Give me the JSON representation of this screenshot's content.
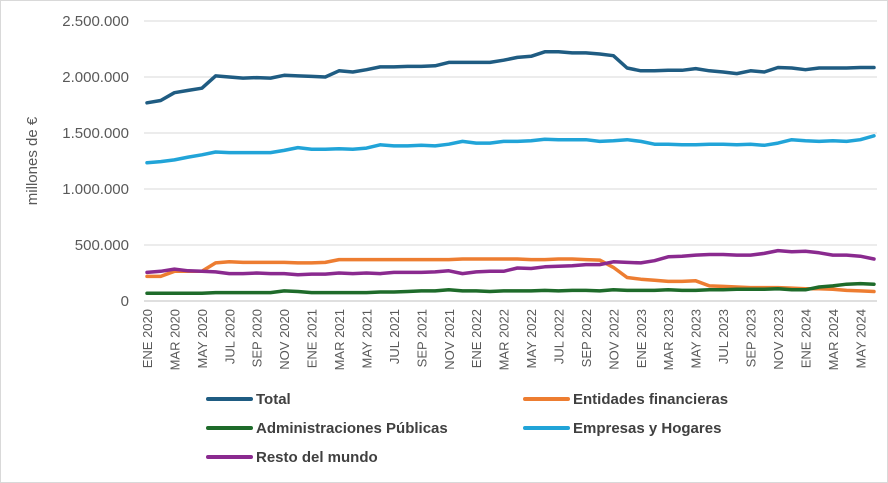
{
  "chart_data": {
    "type": "line",
    "ylabel": "millones de €",
    "ylim": [
      0,
      2500000
    ],
    "yticks": [
      0,
      500000,
      1000000,
      1500000,
      2000000,
      2500000
    ],
    "ytick_labels": [
      "0",
      "500.000",
      "1.000.000",
      "1.500.000",
      "2.000.000",
      "2.500.000"
    ],
    "grid": "horizontal",
    "legend_position": "bottom",
    "x": [
      "ENE 2020",
      "FEB 2020",
      "MAR 2020",
      "ABR 2020",
      "MAY 2020",
      "JUN 2020",
      "JUL 2020",
      "AGO 2020",
      "SEP 2020",
      "OCT 2020",
      "NOV 2020",
      "DIC 2020",
      "ENE 2021",
      "FEB 2021",
      "MAR 2021",
      "ABR 2021",
      "MAY 2021",
      "JUN 2021",
      "JUL 2021",
      "AGO 2021",
      "SEP 2021",
      "OCT 2021",
      "NOV 2021",
      "DIC 2021",
      "ENE 2022",
      "FEB 2022",
      "MAR 2022",
      "ABR 2022",
      "MAY 2022",
      "JUN 2022",
      "JUL 2022",
      "AGO 2022",
      "SEP 2022",
      "OCT 2022",
      "NOV 2022",
      "DIC 2022",
      "ENE 2023",
      "FEB 2023",
      "MAR 2023",
      "ABR 2023",
      "MAY 2023",
      "JUN 2023",
      "JUL 2023",
      "AGO 2023",
      "SEP 2023",
      "OCT 2023",
      "NOV 2023",
      "DIC 2023",
      "ENE 2024",
      "FEB 2024",
      "MAR 2024",
      "ABR 2024",
      "MAY 2024",
      "JUN 2024"
    ],
    "x_tick_labels": [
      "ENE 2020",
      "MAR 2020",
      "MAY 2020",
      "JUL 2020",
      "SEP 2020",
      "NOV 2020",
      "ENE 2021",
      "MAR 2021",
      "MAY 2021",
      "JUL 2021",
      "SEP 2021",
      "NOV 2021",
      "ENE 2022",
      "MAR 2022",
      "MAY 2022",
      "JUL 2022",
      "SEP 2022",
      "NOV 2022",
      "ENE 2023",
      "MAR 2023",
      "MAY 2023",
      "JUL 2023",
      "SEP 2023",
      "NOV 2023",
      "ENE 2024",
      "MAR 2024",
      "MAY 2024"
    ],
    "series": [
      {
        "name": "Total",
        "color": "#1f5c82",
        "values": [
          1770000,
          1790000,
          1860000,
          1880000,
          1900000,
          2010000,
          2000000,
          1990000,
          1995000,
          1990000,
          2015000,
          2010000,
          2005000,
          2000000,
          2055000,
          2045000,
          2065000,
          2090000,
          2090000,
          2095000,
          2095000,
          2100000,
          2130000,
          2130000,
          2130000,
          2130000,
          2150000,
          2175000,
          2185000,
          2225000,
          2225000,
          2215000,
          2215000,
          2205000,
          2190000,
          2080000,
          2055000,
          2055000,
          2060000,
          2060000,
          2075000,
          2055000,
          2045000,
          2030000,
          2055000,
          2045000,
          2085000,
          2080000,
          2065000,
          2080000,
          2080000,
          2080000,
          2085000,
          2085000
        ]
      },
      {
        "name": "Entidades financieras",
        "color": "#ed7d31",
        "values": [
          220000,
          220000,
          265000,
          265000,
          265000,
          340000,
          350000,
          345000,
          345000,
          345000,
          345000,
          340000,
          340000,
          345000,
          370000,
          370000,
          370000,
          370000,
          370000,
          370000,
          370000,
          370000,
          370000,
          375000,
          375000,
          375000,
          375000,
          375000,
          370000,
          370000,
          375000,
          375000,
          370000,
          365000,
          300000,
          210000,
          195000,
          185000,
          175000,
          175000,
          180000,
          135000,
          130000,
          125000,
          120000,
          120000,
          120000,
          115000,
          110000,
          110000,
          105000,
          95000,
          90000,
          85000
        ]
      },
      {
        "name": "Administraciones Públicas",
        "color": "#1e6b2a",
        "values": [
          70000,
          70000,
          70000,
          70000,
          70000,
          75000,
          75000,
          75000,
          75000,
          75000,
          90000,
          85000,
          75000,
          75000,
          75000,
          75000,
          75000,
          80000,
          80000,
          85000,
          90000,
          90000,
          100000,
          90000,
          90000,
          85000,
          90000,
          90000,
          90000,
          95000,
          90000,
          95000,
          95000,
          90000,
          100000,
          95000,
          95000,
          95000,
          100000,
          95000,
          95000,
          100000,
          100000,
          105000,
          105000,
          105000,
          110000,
          100000,
          100000,
          125000,
          135000,
          150000,
          155000,
          150000
        ]
      },
      {
        "name": "Empresas y Hogares",
        "color": "#21a4d8",
        "values": [
          1235000,
          1245000,
          1260000,
          1285000,
          1305000,
          1330000,
          1325000,
          1325000,
          1325000,
          1325000,
          1345000,
          1370000,
          1355000,
          1355000,
          1360000,
          1355000,
          1365000,
          1395000,
          1385000,
          1385000,
          1390000,
          1385000,
          1400000,
          1425000,
          1410000,
          1410000,
          1425000,
          1425000,
          1430000,
          1445000,
          1440000,
          1440000,
          1440000,
          1425000,
          1430000,
          1440000,
          1425000,
          1400000,
          1400000,
          1395000,
          1395000,
          1400000,
          1400000,
          1395000,
          1400000,
          1390000,
          1410000,
          1440000,
          1430000,
          1425000,
          1430000,
          1425000,
          1440000,
          1475000
        ]
      },
      {
        "name": "Resto del mundo",
        "color": "#8a2a8f",
        "values": [
          255000,
          265000,
          285000,
          270000,
          265000,
          260000,
          245000,
          245000,
          250000,
          245000,
          245000,
          235000,
          240000,
          240000,
          250000,
          245000,
          250000,
          245000,
          255000,
          255000,
          255000,
          260000,
          270000,
          245000,
          260000,
          265000,
          265000,
          295000,
          290000,
          305000,
          310000,
          315000,
          325000,
          325000,
          350000,
          345000,
          340000,
          360000,
          395000,
          400000,
          410000,
          415000,
          415000,
          410000,
          410000,
          425000,
          450000,
          440000,
          445000,
          430000,
          410000,
          410000,
          400000,
          375000
        ]
      }
    ]
  }
}
